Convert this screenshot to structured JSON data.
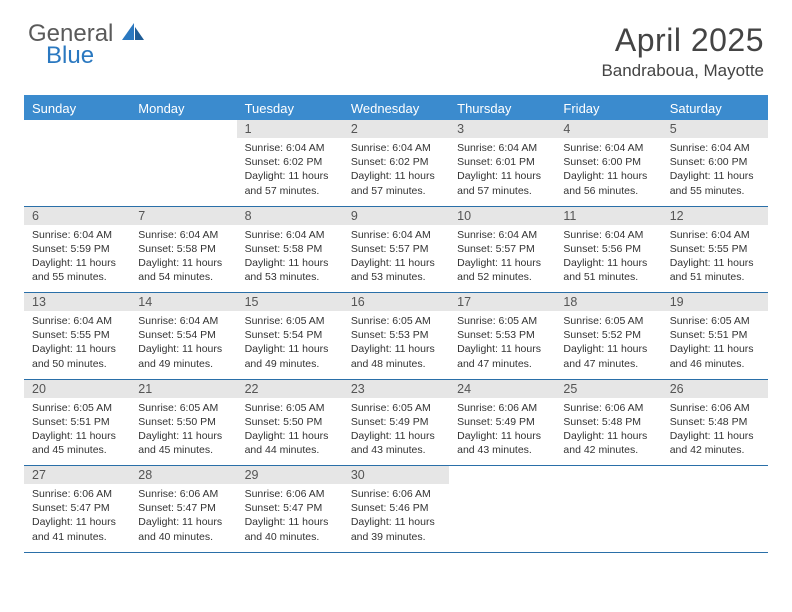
{
  "logo": {
    "word1": "General",
    "word2": "Blue"
  },
  "title": {
    "month": "April 2025",
    "location": "Bandraboua, Mayotte"
  },
  "colors": {
    "header_bg": "#3b8bce",
    "header_text": "#ffffff",
    "rule": "#2a6fa8",
    "daynum_bg": "#e6e6e6",
    "body_text": "#333333",
    "logo_gray": "#5a5a5a",
    "logo_blue": "#2a78c0"
  },
  "dayNames": [
    "Sunday",
    "Monday",
    "Tuesday",
    "Wednesday",
    "Thursday",
    "Friday",
    "Saturday"
  ],
  "weeks": [
    [
      {
        "n": "",
        "sr": "",
        "ss": "",
        "dl": ""
      },
      {
        "n": "",
        "sr": "",
        "ss": "",
        "dl": ""
      },
      {
        "n": "1",
        "sr": "Sunrise: 6:04 AM",
        "ss": "Sunset: 6:02 PM",
        "dl": "Daylight: 11 hours and 57 minutes."
      },
      {
        "n": "2",
        "sr": "Sunrise: 6:04 AM",
        "ss": "Sunset: 6:02 PM",
        "dl": "Daylight: 11 hours and 57 minutes."
      },
      {
        "n": "3",
        "sr": "Sunrise: 6:04 AM",
        "ss": "Sunset: 6:01 PM",
        "dl": "Daylight: 11 hours and 57 minutes."
      },
      {
        "n": "4",
        "sr": "Sunrise: 6:04 AM",
        "ss": "Sunset: 6:00 PM",
        "dl": "Daylight: 11 hours and 56 minutes."
      },
      {
        "n": "5",
        "sr": "Sunrise: 6:04 AM",
        "ss": "Sunset: 6:00 PM",
        "dl": "Daylight: 11 hours and 55 minutes."
      }
    ],
    [
      {
        "n": "6",
        "sr": "Sunrise: 6:04 AM",
        "ss": "Sunset: 5:59 PM",
        "dl": "Daylight: 11 hours and 55 minutes."
      },
      {
        "n": "7",
        "sr": "Sunrise: 6:04 AM",
        "ss": "Sunset: 5:58 PM",
        "dl": "Daylight: 11 hours and 54 minutes."
      },
      {
        "n": "8",
        "sr": "Sunrise: 6:04 AM",
        "ss": "Sunset: 5:58 PM",
        "dl": "Daylight: 11 hours and 53 minutes."
      },
      {
        "n": "9",
        "sr": "Sunrise: 6:04 AM",
        "ss": "Sunset: 5:57 PM",
        "dl": "Daylight: 11 hours and 53 minutes."
      },
      {
        "n": "10",
        "sr": "Sunrise: 6:04 AM",
        "ss": "Sunset: 5:57 PM",
        "dl": "Daylight: 11 hours and 52 minutes."
      },
      {
        "n": "11",
        "sr": "Sunrise: 6:04 AM",
        "ss": "Sunset: 5:56 PM",
        "dl": "Daylight: 11 hours and 51 minutes."
      },
      {
        "n": "12",
        "sr": "Sunrise: 6:04 AM",
        "ss": "Sunset: 5:55 PM",
        "dl": "Daylight: 11 hours and 51 minutes."
      }
    ],
    [
      {
        "n": "13",
        "sr": "Sunrise: 6:04 AM",
        "ss": "Sunset: 5:55 PM",
        "dl": "Daylight: 11 hours and 50 minutes."
      },
      {
        "n": "14",
        "sr": "Sunrise: 6:04 AM",
        "ss": "Sunset: 5:54 PM",
        "dl": "Daylight: 11 hours and 49 minutes."
      },
      {
        "n": "15",
        "sr": "Sunrise: 6:05 AM",
        "ss": "Sunset: 5:54 PM",
        "dl": "Daylight: 11 hours and 49 minutes."
      },
      {
        "n": "16",
        "sr": "Sunrise: 6:05 AM",
        "ss": "Sunset: 5:53 PM",
        "dl": "Daylight: 11 hours and 48 minutes."
      },
      {
        "n": "17",
        "sr": "Sunrise: 6:05 AM",
        "ss": "Sunset: 5:53 PM",
        "dl": "Daylight: 11 hours and 47 minutes."
      },
      {
        "n": "18",
        "sr": "Sunrise: 6:05 AM",
        "ss": "Sunset: 5:52 PM",
        "dl": "Daylight: 11 hours and 47 minutes."
      },
      {
        "n": "19",
        "sr": "Sunrise: 6:05 AM",
        "ss": "Sunset: 5:51 PM",
        "dl": "Daylight: 11 hours and 46 minutes."
      }
    ],
    [
      {
        "n": "20",
        "sr": "Sunrise: 6:05 AM",
        "ss": "Sunset: 5:51 PM",
        "dl": "Daylight: 11 hours and 45 minutes."
      },
      {
        "n": "21",
        "sr": "Sunrise: 6:05 AM",
        "ss": "Sunset: 5:50 PM",
        "dl": "Daylight: 11 hours and 45 minutes."
      },
      {
        "n": "22",
        "sr": "Sunrise: 6:05 AM",
        "ss": "Sunset: 5:50 PM",
        "dl": "Daylight: 11 hours and 44 minutes."
      },
      {
        "n": "23",
        "sr": "Sunrise: 6:05 AM",
        "ss": "Sunset: 5:49 PM",
        "dl": "Daylight: 11 hours and 43 minutes."
      },
      {
        "n": "24",
        "sr": "Sunrise: 6:06 AM",
        "ss": "Sunset: 5:49 PM",
        "dl": "Daylight: 11 hours and 43 minutes."
      },
      {
        "n": "25",
        "sr": "Sunrise: 6:06 AM",
        "ss": "Sunset: 5:48 PM",
        "dl": "Daylight: 11 hours and 42 minutes."
      },
      {
        "n": "26",
        "sr": "Sunrise: 6:06 AM",
        "ss": "Sunset: 5:48 PM",
        "dl": "Daylight: 11 hours and 42 minutes."
      }
    ],
    [
      {
        "n": "27",
        "sr": "Sunrise: 6:06 AM",
        "ss": "Sunset: 5:47 PM",
        "dl": "Daylight: 11 hours and 41 minutes."
      },
      {
        "n": "28",
        "sr": "Sunrise: 6:06 AM",
        "ss": "Sunset: 5:47 PM",
        "dl": "Daylight: 11 hours and 40 minutes."
      },
      {
        "n": "29",
        "sr": "Sunrise: 6:06 AM",
        "ss": "Sunset: 5:47 PM",
        "dl": "Daylight: 11 hours and 40 minutes."
      },
      {
        "n": "30",
        "sr": "Sunrise: 6:06 AM",
        "ss": "Sunset: 5:46 PM",
        "dl": "Daylight: 11 hours and 39 minutes."
      },
      {
        "n": "",
        "sr": "",
        "ss": "",
        "dl": ""
      },
      {
        "n": "",
        "sr": "",
        "ss": "",
        "dl": ""
      },
      {
        "n": "",
        "sr": "",
        "ss": "",
        "dl": ""
      }
    ]
  ]
}
